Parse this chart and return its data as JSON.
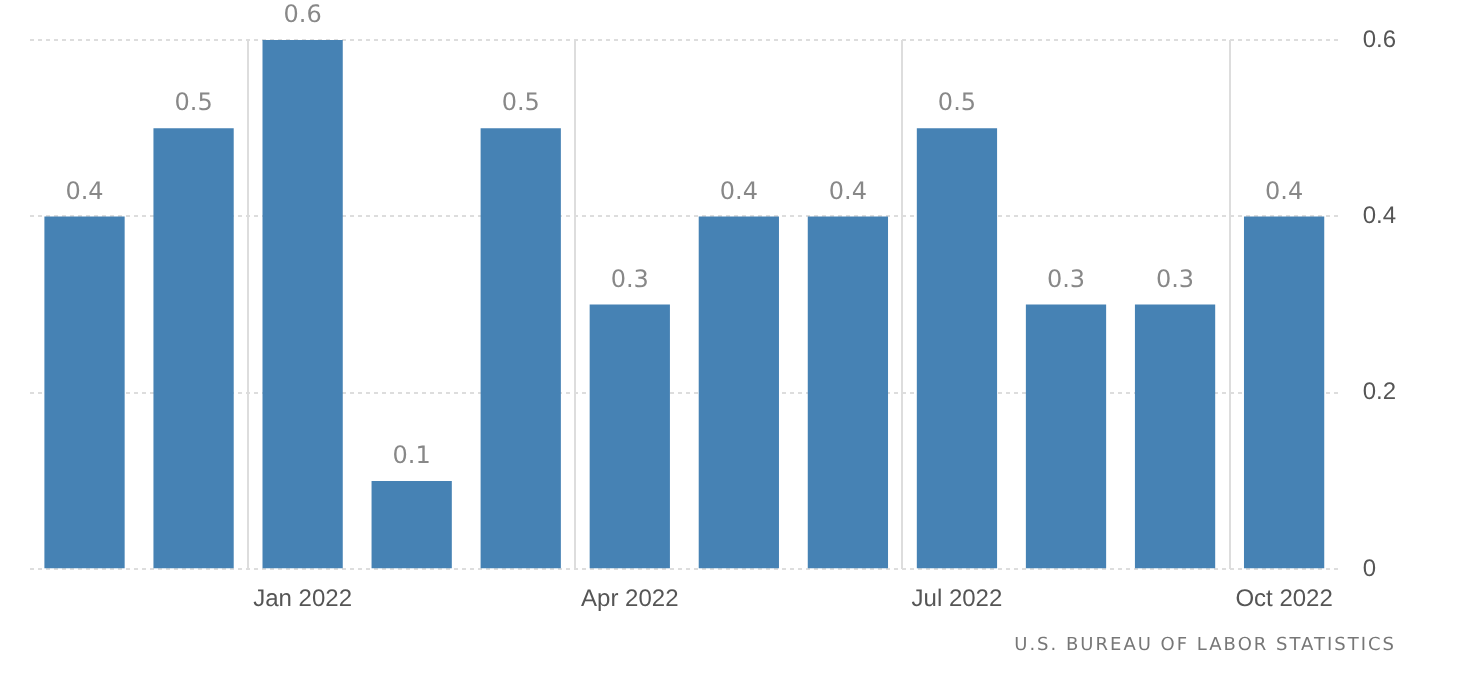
{
  "chart_data": {
    "type": "bar",
    "categories": [
      null,
      null,
      "Jan 2022",
      null,
      null,
      "Apr 2022",
      null,
      null,
      "Jul 2022",
      null,
      null,
      "Oct 2022"
    ],
    "values": [
      0.4,
      0.5,
      0.6,
      0.1,
      0.5,
      0.3,
      0.4,
      0.4,
      0.5,
      0.3,
      0.3,
      0.4
    ],
    "color": "#4682b4",
    "ylim": [
      0,
      0.6
    ],
    "yticks": [
      0,
      0.2,
      0.4,
      0.6
    ],
    "grid": true,
    "data_labels": true,
    "annotations": [
      "U.S. BUREAU OF LABOR STATISTICS"
    ]
  }
}
